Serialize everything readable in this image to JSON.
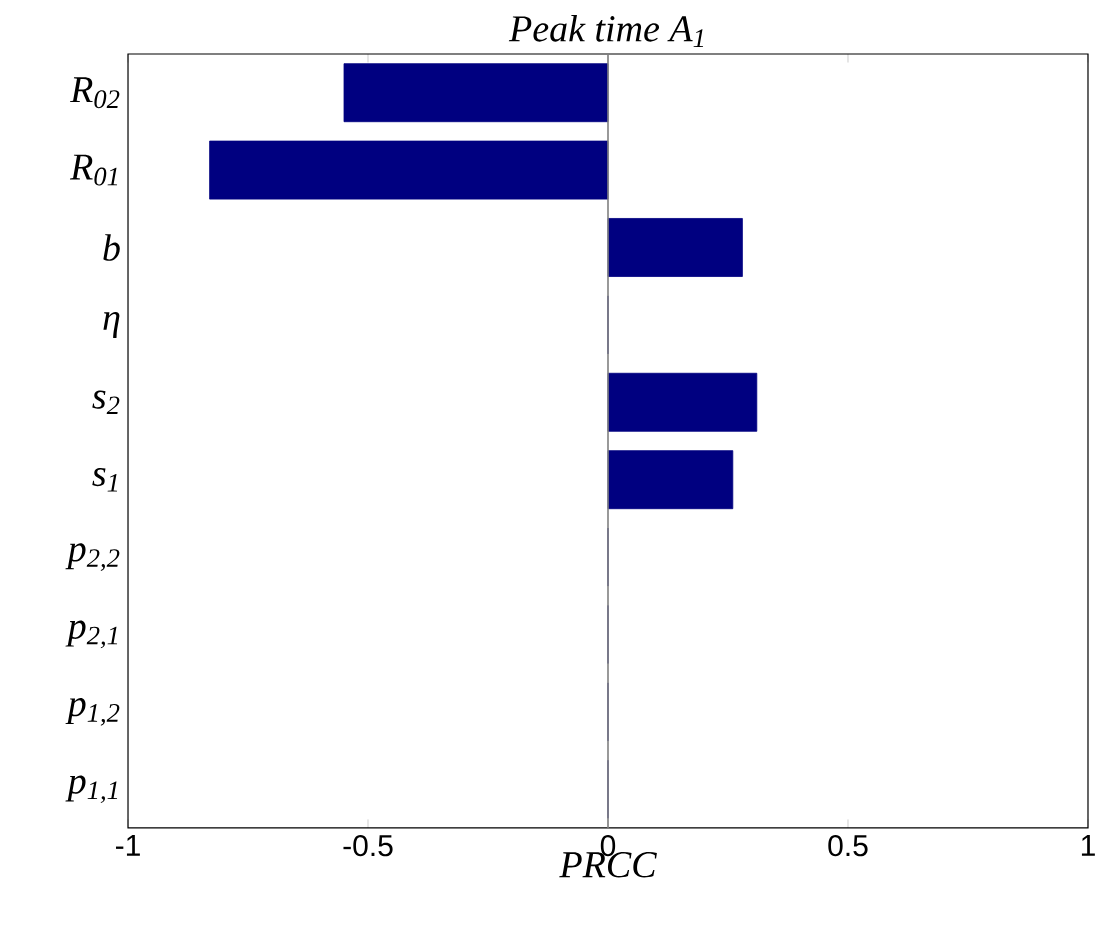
{
  "chart_data": {
    "type": "bar",
    "orientation": "horizontal",
    "title": "Peak time A$_{1}$",
    "xlabel": "PRCC",
    "categories": [
      "R$_{02}$",
      "R$_{01}$",
      "b",
      "η",
      "s$_{2}$",
      "s$_{1}$",
      "p$_{2,2}$",
      "p$_{2,1}$",
      "p$_{1,2}$",
      "p$_{1,1}$"
    ],
    "values": [
      -0.55,
      -0.83,
      0.28,
      0,
      0.31,
      0.26,
      0,
      0,
      0,
      0
    ],
    "color": "#000080",
    "xlim": [
      -1,
      1
    ],
    "xticks": [
      -1,
      -0.5,
      0,
      0.5,
      1
    ],
    "ref_lines": [
      {
        "axis": "x",
        "value": 0,
        "color": "#808080"
      }
    ],
    "grid": false
  }
}
